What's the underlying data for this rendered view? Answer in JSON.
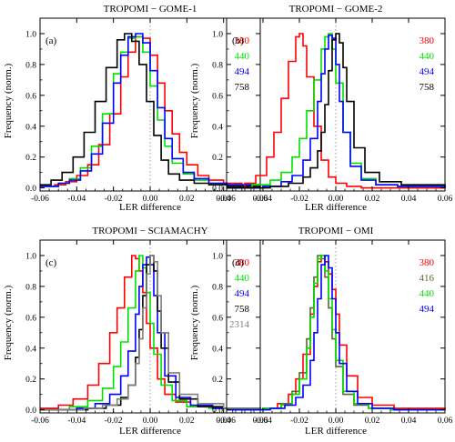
{
  "chart_data": [
    {
      "type": "line",
      "title": "TROPOMI − GOME-1",
      "panel_label": "(a)",
      "xlabel": "LER difference",
      "ylabel": "Frequency (norm.)",
      "xlim": [
        -0.06,
        0.06
      ],
      "ylim": [
        -0.02,
        1.1
      ],
      "xticks": [
        "-0.06",
        "-0.04",
        "-0.02",
        "0.00",
        "0.02",
        "0.04",
        "0.06"
      ],
      "yticks": [
        "0.0",
        "0.2",
        "0.4",
        "0.6",
        "0.8",
        "1.0"
      ],
      "legend_position": "top-right",
      "reference_line_x": 0,
      "series": [
        {
          "name": "380",
          "color": "#ff0000",
          "x": [
            -0.06,
            -0.052,
            -0.046,
            -0.04,
            -0.034,
            -0.028,
            -0.022,
            -0.016,
            -0.012,
            -0.008,
            -0.004,
            0.0,
            0.004,
            0.008,
            0.012,
            0.016,
            0.02,
            0.026,
            0.032,
            0.04,
            0.05,
            0.06
          ],
          "y": [
            0.01,
            0.02,
            0.04,
            0.08,
            0.15,
            0.28,
            0.48,
            0.72,
            0.88,
            0.98,
            0.97,
            0.86,
            0.68,
            0.5,
            0.35,
            0.23,
            0.15,
            0.08,
            0.05,
            0.03,
            0.02,
            0.01
          ]
        },
        {
          "name": "440",
          "color": "#00e000",
          "x": [
            -0.06,
            -0.05,
            -0.044,
            -0.038,
            -0.032,
            -0.026,
            -0.02,
            -0.016,
            -0.012,
            -0.008,
            -0.004,
            0.0,
            0.004,
            0.008,
            0.012,
            0.018,
            0.024,
            0.032,
            0.042,
            0.06
          ],
          "y": [
            0.01,
            0.03,
            0.06,
            0.13,
            0.27,
            0.48,
            0.74,
            0.88,
            0.97,
            0.98,
            0.88,
            0.66,
            0.44,
            0.27,
            0.16,
            0.09,
            0.05,
            0.03,
            0.02,
            0.01
          ]
        },
        {
          "name": "494",
          "color": "#0000ff",
          "x": [
            -0.06,
            -0.05,
            -0.044,
            -0.038,
            -0.032,
            -0.026,
            -0.02,
            -0.016,
            -0.012,
            -0.008,
            -0.004,
            0.0,
            0.004,
            0.008,
            0.012,
            0.018,
            0.024,
            0.032,
            0.042,
            0.06
          ],
          "y": [
            0.01,
            0.03,
            0.05,
            0.11,
            0.22,
            0.42,
            0.68,
            0.86,
            0.98,
            1.0,
            0.94,
            0.76,
            0.52,
            0.32,
            0.19,
            0.1,
            0.06,
            0.03,
            0.02,
            0.01
          ]
        },
        {
          "name": "758",
          "color": "#000000",
          "x": [
            -0.06,
            -0.054,
            -0.048,
            -0.042,
            -0.036,
            -0.03,
            -0.024,
            -0.018,
            -0.014,
            -0.01,
            -0.006,
            -0.002,
            0.002,
            0.006,
            0.01,
            0.016,
            0.024,
            0.032,
            0.042,
            0.06
          ],
          "y": [
            0.02,
            0.05,
            0.1,
            0.2,
            0.36,
            0.56,
            0.78,
            0.96,
            1.0,
            0.95,
            0.8,
            0.56,
            0.34,
            0.18,
            0.09,
            0.05,
            0.03,
            0.02,
            0.01,
            0.01
          ]
        }
      ]
    },
    {
      "type": "line",
      "title": "TROPOMI − GOME-2",
      "panel_label": "(b)",
      "xlabel": "LER difference",
      "ylabel": "Frequency (norm.)",
      "xlim": [
        -0.06,
        0.06
      ],
      "ylim": [
        -0.02,
        1.1
      ],
      "xticks": [
        "-0.06",
        "-0.04",
        "-0.02",
        "0.00",
        "0.02",
        "0.04",
        "0.06"
      ],
      "yticks": [
        "0.0",
        "0.2",
        "0.4",
        "0.6",
        "0.8",
        "1.0"
      ],
      "legend_position": "top-right",
      "reference_line_x": 0,
      "series": [
        {
          "name": "380",
          "color": "#ff0000",
          "x": [
            -0.06,
            -0.05,
            -0.044,
            -0.038,
            -0.034,
            -0.03,
            -0.026,
            -0.022,
            -0.02,
            -0.018,
            -0.016,
            -0.012,
            -0.008,
            -0.004,
            0.0,
            0.006,
            0.014,
            0.03,
            0.06
          ],
          "y": [
            0.0,
            0.03,
            0.08,
            0.2,
            0.36,
            0.58,
            0.82,
            0.98,
            1.0,
            0.92,
            0.72,
            0.4,
            0.18,
            0.07,
            0.03,
            0.01,
            0.0,
            0.0,
            0.0
          ]
        },
        {
          "name": "440",
          "color": "#00e000",
          "x": [
            -0.06,
            -0.046,
            -0.036,
            -0.03,
            -0.024,
            -0.02,
            -0.016,
            -0.012,
            -0.008,
            -0.006,
            -0.004,
            -0.002,
            0.0,
            0.004,
            0.008,
            0.014,
            0.022,
            0.034,
            0.06
          ],
          "y": [
            0.0,
            0.02,
            0.05,
            0.1,
            0.2,
            0.32,
            0.5,
            0.7,
            0.9,
            0.98,
            1.0,
            0.9,
            0.68,
            0.36,
            0.16,
            0.06,
            0.02,
            0.01,
            0.0
          ]
        },
        {
          "name": "494",
          "color": "#0000ff",
          "x": [
            -0.06,
            -0.04,
            -0.03,
            -0.024,
            -0.018,
            -0.014,
            -0.01,
            -0.008,
            -0.006,
            -0.004,
            -0.002,
            0.0,
            0.002,
            0.004,
            0.008,
            0.014,
            0.022,
            0.034,
            0.06
          ],
          "y": [
            0.0,
            0.01,
            0.04,
            0.08,
            0.18,
            0.32,
            0.56,
            0.74,
            0.9,
            0.99,
            0.97,
            0.8,
            0.56,
            0.36,
            0.14,
            0.05,
            0.02,
            0.01,
            0.0
          ]
        },
        {
          "name": "758",
          "color": "#000000",
          "x": [
            -0.06,
            -0.036,
            -0.026,
            -0.018,
            -0.014,
            -0.01,
            -0.008,
            -0.006,
            -0.004,
            -0.002,
            0.0,
            0.002,
            0.004,
            0.006,
            0.01,
            0.016,
            0.024,
            0.036,
            0.06
          ],
          "y": [
            0.0,
            0.01,
            0.03,
            0.07,
            0.13,
            0.24,
            0.36,
            0.54,
            0.76,
            0.96,
            1.0,
            0.94,
            0.78,
            0.56,
            0.26,
            0.1,
            0.04,
            0.02,
            0.0
          ]
        }
      ]
    },
    {
      "type": "line",
      "title": "TROPOMI − SCIAMACHY",
      "panel_label": "(c)",
      "xlabel": "LER difference",
      "ylabel": "Frequency (norm.)",
      "xlim": [
        -0.06,
        0.06
      ],
      "ylim": [
        -0.02,
        1.1
      ],
      "xticks": [
        "-0.06",
        "-0.04",
        "-0.02",
        "0.00",
        "0.02",
        "0.04",
        "0.06"
      ],
      "yticks": [
        "0.0",
        "0.2",
        "0.4",
        "0.6",
        "0.8",
        "1.0"
      ],
      "legend_position": "top-right",
      "reference_line_x": 0,
      "series": [
        {
          "name": "380",
          "color": "#ff0000",
          "x": [
            -0.06,
            -0.05,
            -0.042,
            -0.034,
            -0.028,
            -0.022,
            -0.018,
            -0.014,
            -0.01,
            -0.008,
            -0.006,
            -0.004,
            -0.002,
            0.0,
            0.004,
            0.008,
            0.014,
            0.022,
            0.034,
            0.06
          ],
          "y": [
            0.01,
            0.03,
            0.07,
            0.16,
            0.3,
            0.5,
            0.66,
            0.86,
            1.0,
            0.98,
            0.9,
            0.76,
            0.56,
            0.4,
            0.2,
            0.1,
            0.05,
            0.02,
            0.01,
            0.0
          ]
        },
        {
          "name": "440",
          "color": "#00e000",
          "x": [
            -0.06,
            -0.044,
            -0.034,
            -0.026,
            -0.02,
            -0.016,
            -0.012,
            -0.008,
            -0.006,
            -0.004,
            -0.002,
            0.0,
            0.002,
            0.006,
            0.012,
            0.02,
            0.032,
            0.06
          ],
          "y": [
            0.0,
            0.02,
            0.06,
            0.14,
            0.28,
            0.44,
            0.66,
            0.9,
            1.0,
            0.92,
            0.76,
            0.56,
            0.36,
            0.16,
            0.06,
            0.02,
            0.01,
            0.0
          ]
        },
        {
          "name": "494",
          "color": "#0000ff",
          "x": [
            -0.06,
            -0.04,
            -0.03,
            -0.022,
            -0.016,
            -0.012,
            -0.008,
            -0.006,
            -0.004,
            -0.002,
            0.0,
            0.002,
            0.004,
            0.008,
            0.014,
            0.022,
            0.034,
            0.06
          ],
          "y": [
            0.0,
            0.01,
            0.04,
            0.1,
            0.22,
            0.38,
            0.62,
            0.8,
            0.94,
            0.99,
            0.94,
            0.74,
            0.5,
            0.22,
            0.08,
            0.03,
            0.01,
            0.0
          ]
        },
        {
          "name": "758",
          "color": "#000000",
          "x": [
            -0.06,
            -0.034,
            -0.024,
            -0.016,
            -0.012,
            -0.008,
            -0.006,
            -0.004,
            -0.002,
            0.0,
            0.002,
            0.004,
            0.006,
            0.01,
            0.016,
            0.026,
            0.04,
            0.06
          ],
          "y": [
            0.0,
            0.01,
            0.03,
            0.08,
            0.16,
            0.34,
            0.52,
            0.74,
            0.94,
            1.0,
            0.9,
            0.64,
            0.4,
            0.18,
            0.07,
            0.02,
            0.01,
            0.0
          ]
        },
        {
          "name": "2314",
          "color": "#808080",
          "x": [
            -0.06,
            -0.036,
            -0.026,
            -0.018,
            -0.012,
            -0.008,
            -0.006,
            -0.004,
            -0.002,
            0.0,
            0.002,
            0.004,
            0.006,
            0.01,
            0.016,
            0.026,
            0.04,
            0.06
          ],
          "y": [
            0.0,
            0.01,
            0.03,
            0.07,
            0.16,
            0.3,
            0.46,
            0.66,
            0.88,
            1.0,
            0.96,
            0.74,
            0.5,
            0.24,
            0.1,
            0.04,
            0.01,
            0.0
          ]
        }
      ]
    },
    {
      "type": "line",
      "title": "TROPOMI − OMI",
      "panel_label": "(d)",
      "xlabel": "LER difference",
      "ylabel": "Frequency (norm.)",
      "xlim": [
        -0.06,
        0.06
      ],
      "ylim": [
        -0.02,
        1.1
      ],
      "xticks": [
        "-0.06",
        "-0.04",
        "-0.02",
        "0.00",
        "0.02",
        "0.04",
        "0.06"
      ],
      "yticks": [
        "0.0",
        "0.2",
        "0.4",
        "0.6",
        "0.8",
        "1.0"
      ],
      "legend_position": "top-right",
      "reference_line_x": 0,
      "series": [
        {
          "name": "380",
          "color": "#ff0000",
          "x": [
            -0.06,
            -0.04,
            -0.032,
            -0.026,
            -0.022,
            -0.018,
            -0.014,
            -0.012,
            -0.01,
            -0.008,
            -0.006,
            -0.004,
            -0.002,
            0.0,
            0.002,
            0.006,
            0.012,
            0.02,
            0.032,
            0.06
          ],
          "y": [
            0.0,
            0.01,
            0.04,
            0.1,
            0.2,
            0.36,
            0.62,
            0.8,
            0.96,
            1.0,
            0.96,
            0.88,
            0.78,
            0.62,
            0.42,
            0.22,
            0.08,
            0.03,
            0.01,
            0.0
          ]
        },
        {
          "name": "416",
          "color": "#556b2f",
          "x": [
            -0.06,
            -0.04,
            -0.03,
            -0.024,
            -0.02,
            -0.016,
            -0.014,
            -0.012,
            -0.01,
            -0.008,
            -0.006,
            -0.004,
            -0.002,
            0.0,
            0.004,
            0.01,
            0.018,
            0.03,
            0.06
          ],
          "y": [
            0.0,
            0.01,
            0.04,
            0.12,
            0.24,
            0.46,
            0.66,
            0.86,
            1.0,
            0.98,
            0.86,
            0.66,
            0.46,
            0.28,
            0.1,
            0.03,
            0.01,
            0.0,
            0.0
          ]
        },
        {
          "name": "440",
          "color": "#00e000",
          "x": [
            -0.06,
            -0.04,
            -0.03,
            -0.024,
            -0.02,
            -0.016,
            -0.014,
            -0.012,
            -0.01,
            -0.008,
            -0.006,
            -0.004,
            -0.002,
            0.0,
            0.004,
            0.01,
            0.018,
            0.03,
            0.06
          ],
          "y": [
            0.0,
            0.01,
            0.03,
            0.1,
            0.2,
            0.4,
            0.6,
            0.82,
            0.98,
            1.0,
            0.9,
            0.72,
            0.52,
            0.32,
            0.12,
            0.04,
            0.01,
            0.0,
            0.0
          ]
        },
        {
          "name": "494",
          "color": "#0000ff",
          "x": [
            -0.06,
            -0.036,
            -0.028,
            -0.022,
            -0.018,
            -0.014,
            -0.012,
            -0.01,
            -0.008,
            -0.006,
            -0.004,
            -0.002,
            0.0,
            0.002,
            0.006,
            0.012,
            0.02,
            0.032,
            0.06
          ],
          "y": [
            0.0,
            0.01,
            0.03,
            0.08,
            0.16,
            0.32,
            0.5,
            0.72,
            0.94,
            1.0,
            0.92,
            0.72,
            0.5,
            0.3,
            0.12,
            0.04,
            0.01,
            0.0,
            0.0
          ]
        }
      ]
    }
  ]
}
